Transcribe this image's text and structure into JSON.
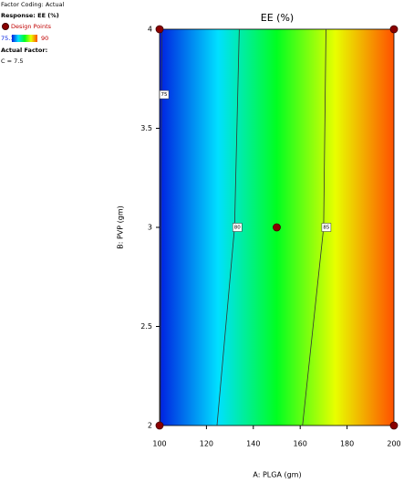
{
  "chart_data": {
    "type": "contour",
    "title": "EE (%)",
    "x_label": "A: PLGA (gm)",
    "y_label": "B: PVP (gm)",
    "xlim": [
      100,
      200
    ],
    "ylim": [
      2,
      4
    ],
    "xticks": [
      100,
      120,
      140,
      160,
      180,
      200
    ],
    "yticks": [
      2,
      2.5,
      3,
      3.5,
      4
    ],
    "colorscale": {
      "min": 75.1,
      "max": 90,
      "colors": [
        "#0020e0",
        "#00e0ff",
        "#00ff20",
        "#e8ff00",
        "#ff5000"
      ]
    },
    "contours": [
      {
        "level": 75,
        "x": [
          100.3,
          100.8,
          101
        ],
        "y": [
          2,
          3.67,
          4
        ]
      },
      {
        "level": 80,
        "x": [
          124.5,
          132,
          134
        ],
        "y": [
          2,
          3,
          4
        ]
      },
      {
        "level": 85,
        "x": [
          161,
          170,
          171
        ],
        "y": [
          2,
          3,
          4
        ]
      }
    ],
    "design_points": {
      "name": "Design Points",
      "color": "#8b0000",
      "x": [
        100,
        100,
        200,
        200,
        150
      ],
      "y": [
        2,
        4,
        2,
        4,
        3
      ]
    },
    "legend": {
      "coding": "Factor Coding: Actual",
      "response": "Response: EE  (%)",
      "actual_factor": "Actual Factor:",
      "factor_value": "C = 7.5"
    }
  }
}
